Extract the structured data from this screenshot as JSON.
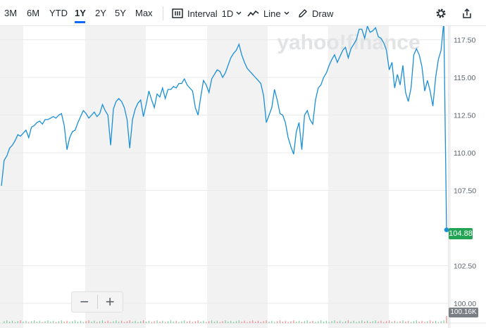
{
  "toolbar": {
    "ranges": [
      "3M",
      "6M",
      "YTD",
      "1Y",
      "2Y",
      "5Y",
      "Max"
    ],
    "active_range": "1Y",
    "interval_label": "Interval",
    "interval_value": "1D",
    "charttype_label": "Line",
    "draw_label": "Draw",
    "icons": [
      "interval-icon",
      "line-chart-icon",
      "chevron-down-icon",
      "draw-pencil-icon",
      "gear-icon",
      "share-icon"
    ]
  },
  "watermark": "yahoo!finance",
  "price_badge": "104.88",
  "volume_badge": "100.16K",
  "zoom": {
    "minus": "−",
    "plus": "+"
  },
  "colors": {
    "line": "#1a8fd6",
    "up": "#21a453",
    "down": "#e0352b",
    "shade": "#f2f2f3",
    "accent": "#0f69ff"
  },
  "chart_data": {
    "type": "line",
    "yticks": [
      "117.50",
      "115.00",
      "112.50",
      "110.00",
      "107.50",
      "102.50",
      "100.00"
    ],
    "ylim": [
      99.9,
      118.8
    ],
    "last_value": 104.88,
    "values": [
      107.8,
      109.5,
      109.8,
      110.3,
      110.5,
      110.8,
      111.2,
      111.1,
      111.3,
      111.5,
      111.0,
      111.7,
      111.8,
      112.0,
      112.1,
      111.9,
      112.2,
      112.2,
      112.3,
      112.4,
      112.3,
      112.5,
      112.6,
      111.8,
      110.2,
      111.0,
      111.4,
      111.5,
      112.0,
      112.4,
      112.8,
      112.6,
      112.3,
      112.5,
      112.7,
      112.4,
      112.6,
      113.2,
      112.8,
      112.5,
      110.5,
      112.9,
      113.4,
      113.6,
      113.4,
      113.0,
      112.2,
      110.3,
      112.2,
      112.9,
      113.3,
      113.5,
      112.4,
      113.2,
      114.1,
      113.5,
      113.0,
      113.9,
      113.7,
      114.3,
      113.6,
      114.2,
      114.2,
      114.4,
      114.3,
      114.6,
      114.6,
      114.9,
      114.5,
      114.3,
      114.1,
      113.0,
      112.5,
      113.7,
      114.8,
      114.5,
      114.0,
      114.9,
      115.2,
      115.5,
      115.4,
      115.0,
      115.3,
      115.8,
      116.3,
      116.6,
      116.8,
      117.2,
      116.5,
      116.0,
      115.6,
      115.4,
      115.2,
      115.0,
      114.8,
      114.6,
      113.8,
      112.0,
      112.5,
      113.0,
      114.2,
      113.5,
      112.6,
      112.5,
      112.0,
      111.0,
      110.4,
      109.9,
      111.4,
      112.0,
      110.2,
      112.5,
      112.8,
      112.2,
      111.9,
      113.5,
      114.3,
      114.5,
      115.0,
      115.3,
      115.8,
      116.2,
      116.5,
      116.0,
      116.4,
      116.8,
      117.0,
      116.3,
      116.9,
      117.2,
      117.5,
      118.2,
      118.2,
      117.6,
      118.4,
      118.0,
      118.1,
      118.3,
      117.7,
      117.6,
      117.3,
      116.8,
      115.5,
      116.0,
      114.3,
      115.2,
      114.5,
      115.8,
      114.0,
      113.4,
      114.3,
      116.5,
      116.9,
      116.5,
      115.7,
      114.1,
      114.8,
      114.1,
      113.1,
      115.0,
      116.2,
      116.8,
      118.7,
      104.9
    ]
  }
}
